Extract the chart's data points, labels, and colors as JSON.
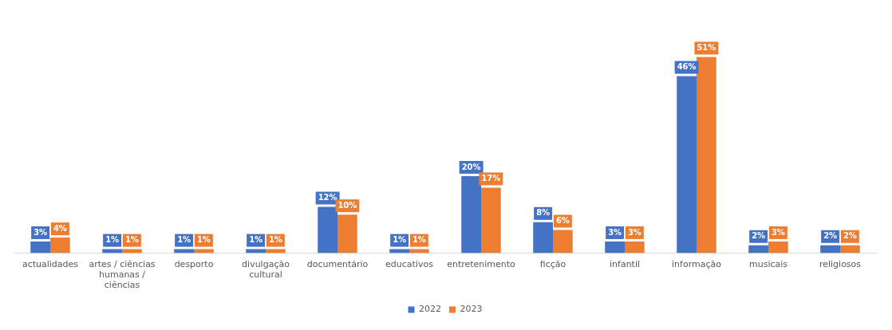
{
  "chart_data": {
    "type": "bar",
    "categories": [
      "actualidades",
      "artes / ciências humanas / ciências",
      "desporto",
      "divulgação cultural",
      "documentário",
      "educativos",
      "entretenimento",
      "ficção",
      "infantil",
      "informação",
      "musicais",
      "religiosos"
    ],
    "series": [
      {
        "name": "2022",
        "color": "#4472c4",
        "values": [
          3,
          1,
          1,
          1,
          12,
          1,
          20,
          8,
          3,
          46,
          2,
          2
        ],
        "value_labels": [
          "3%",
          "1%",
          "1%",
          "1%",
          "12%",
          "1%",
          "20%",
          "8%",
          "3%",
          "46%",
          "2%",
          "2%"
        ]
      },
      {
        "name": "2023",
        "color": "#ed7d31",
        "values": [
          4,
          1,
          1,
          1,
          10,
          1,
          17,
          6,
          3,
          51,
          3,
          2
        ],
        "value_labels": [
          "4%",
          "1%",
          "1%",
          "1%",
          "10%",
          "1%",
          "17%",
          "6%",
          "3%",
          "51%",
          "3%",
          "2%"
        ]
      }
    ],
    "grid": false,
    "legend": "bottom",
    "tick_labels": "x"
  }
}
